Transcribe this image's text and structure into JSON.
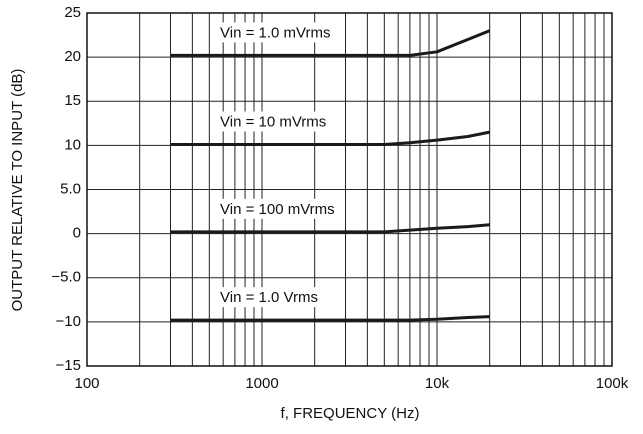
{
  "chart_data": {
    "type": "line",
    "x_label": "f, FREQUENCY (Hz)",
    "y_label": "OUTPUT RELATIVE TO INPUT (dB)",
    "x": [
      300,
      1000,
      3000,
      5000,
      7000,
      10000,
      15000,
      20000
    ],
    "series": [
      {
        "name": "Vin = 1.0 mVrms",
        "color": "#1a1a1a",
        "values": [
          20.2,
          20.2,
          20.2,
          20.2,
          20.2,
          20.6,
          22,
          23
        ]
      },
      {
        "name": "Vin = 10 mVrms",
        "color": "#1a1a1a",
        "values": [
          10.1,
          10.1,
          10.1,
          10.1,
          10.3,
          10.6,
          11,
          11.5
        ]
      },
      {
        "name": "Vin = 100 mVrms",
        "color": "#1a1a1a",
        "values": [
          0.2,
          0.2,
          0.2,
          0.2,
          0.4,
          0.6,
          0.8,
          1
        ]
      },
      {
        "name": "Vin = 1.0 Vrms",
        "color": "#1a1a1a",
        "values": [
          -9.8,
          -9.8,
          -9.8,
          -9.8,
          -9.8,
          -9.7,
          -9.5,
          -9.4
        ]
      }
    ],
    "xlog": true,
    "xlim": [
      100,
      100000
    ],
    "xticks": [
      100,
      1000,
      {
        "value": 10000,
        "label": "10k"
      },
      {
        "value": 100000,
        "label": "100k"
      }
    ],
    "xgrid": [
      200,
      300,
      400,
      500,
      600,
      700,
      800,
      900,
      2000,
      3000,
      4000,
      5000,
      6000,
      7000,
      8000,
      9000,
      20000,
      30000,
      40000,
      50000,
      60000,
      70000,
      80000,
      90000
    ],
    "ylim": [
      -15,
      25
    ],
    "yticks": [
      {
        "value": -15,
        "label": "−15"
      },
      {
        "value": -10,
        "label": "−10"
      },
      {
        "value": -5,
        "label": "−5.0"
      },
      0,
      {
        "value": 5,
        "label": "5.0"
      },
      10,
      15,
      20,
      25
    ],
    "grid": true
  }
}
